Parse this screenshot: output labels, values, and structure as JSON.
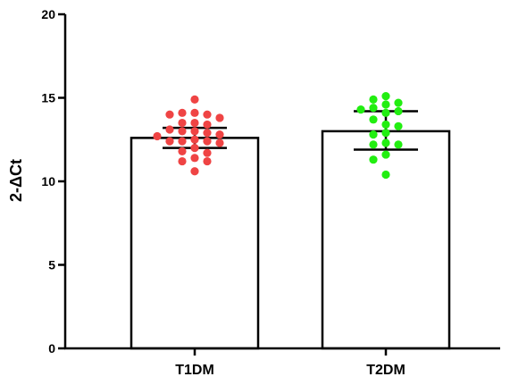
{
  "chart_data": {
    "type": "bar",
    "ylabel": "2-ΔCt",
    "ylim": [
      0,
      20
    ],
    "yticks": [
      0,
      5,
      10,
      15,
      20
    ],
    "categories": [
      "T1DM",
      "T2DM"
    ],
    "bars": [
      {
        "category": "T1DM",
        "mean": 12.6,
        "error_low": 12.0,
        "error_high": 13.2,
        "point_color": "#ef4444",
        "points": [
          14.9,
          14.1,
          14.1,
          14.0,
          14.0,
          13.8,
          13.5,
          13.5,
          13.4,
          13.1,
          13.0,
          13.0,
          12.9,
          12.8,
          12.7,
          12.5,
          12.4,
          12.4,
          12.4,
          12.3,
          12.0,
          11.8,
          11.7,
          11.4,
          11.2,
          11.2,
          10.6
        ]
      },
      {
        "category": "T2DM",
        "mean": 13.0,
        "error_low": 11.9,
        "error_high": 14.2,
        "point_color": "#22ee11",
        "points": [
          15.1,
          14.9,
          14.7,
          14.6,
          14.4,
          14.3,
          14.2,
          14.1,
          13.7,
          13.4,
          13.3,
          12.9,
          12.8,
          12.3,
          12.2,
          12.2,
          11.6,
          11.3,
          10.4
        ]
      }
    ],
    "bar_fill": "#ffffff",
    "stroke_color": "#000000",
    "grid": false,
    "legend": "none"
  }
}
